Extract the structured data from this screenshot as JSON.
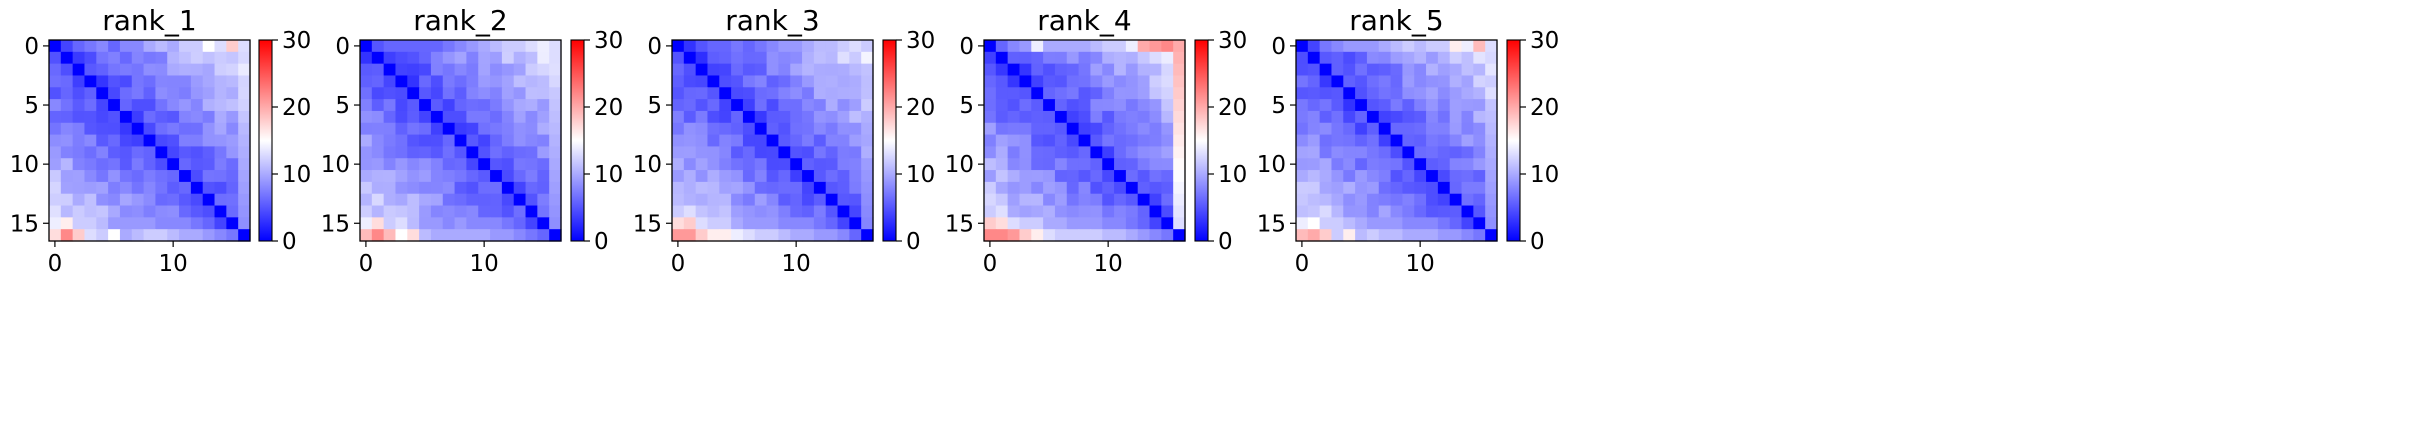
{
  "colormap": {
    "low": "#0000ff",
    "mid": "#ffffff",
    "high": "#ff0000"
  },
  "chart_data": [
    {
      "type": "heatmap",
      "title": "rank_1",
      "rows": 17,
      "cols": 17,
      "xticks": [
        0,
        10
      ],
      "yticks": [
        0,
        5,
        10,
        15
      ],
      "colorbar": {
        "min": 0,
        "max": 30,
        "ticks": [
          0,
          10,
          20,
          30
        ]
      },
      "base": 3.5,
      "slope": 0.6,
      "grad": 0.35,
      "noise": 1.5,
      "first_row": [
        0,
        4,
        6,
        7,
        8,
        6,
        8,
        8,
        10,
        11,
        10,
        12,
        12,
        15,
        13,
        18,
        13
      ],
      "last_row": [
        17,
        22,
        18,
        13,
        12,
        15,
        10,
        11,
        12,
        12,
        11,
        10,
        10,
        9,
        8,
        7,
        0
      ],
      "penult_row": [
        14,
        16,
        12,
        12,
        11,
        9,
        9,
        9,
        9,
        8,
        8,
        8,
        7,
        6,
        4,
        0,
        3
      ]
    },
    {
      "type": "heatmap",
      "title": "rank_2",
      "rows": 17,
      "cols": 17,
      "xticks": [
        0,
        10
      ],
      "yticks": [
        0,
        5,
        10,
        15
      ],
      "colorbar": {
        "min": 0,
        "max": 30,
        "ticks": [
          0,
          10,
          20,
          30
        ]
      },
      "base": 3.5,
      "slope": 0.6,
      "grad": 0.35,
      "noise": 1.5,
      "first_row": [
        0,
        5,
        6,
        6,
        6,
        6,
        6,
        7,
        8,
        9,
        10,
        11,
        12,
        12,
        13,
        14,
        13
      ],
      "last_row": [
        19,
        22,
        19,
        15,
        17,
        11,
        10,
        10,
        10,
        10,
        10,
        9,
        9,
        8,
        7,
        6,
        0
      ],
      "penult_row": [
        14,
        17,
        12,
        13,
        11,
        9,
        9,
        8,
        9,
        8,
        8,
        8,
        7,
        6,
        4,
        0,
        3
      ]
    },
    {
      "type": "heatmap",
      "title": "rank_3",
      "rows": 17,
      "cols": 17,
      "xticks": [
        0,
        10
      ],
      "yticks": [
        0,
        5,
        10,
        15
      ],
      "colorbar": {
        "min": 0,
        "max": 30,
        "ticks": [
          0,
          10,
          20,
          30
        ]
      },
      "base": 3.5,
      "slope": 0.6,
      "grad": 0.35,
      "noise": 1.5,
      "first_row": [
        0,
        3,
        5,
        6,
        6,
        7,
        6,
        7,
        8,
        9,
        9,
        10,
        11,
        11,
        12,
        13,
        12
      ],
      "last_row": [
        21,
        21,
        18,
        16,
        16,
        14,
        13,
        12,
        12,
        11,
        10,
        10,
        9,
        9,
        8,
        6,
        0
      ],
      "penult_row": [
        17,
        18,
        13,
        12,
        12,
        10,
        9,
        9,
        9,
        8,
        8,
        8,
        7,
        6,
        4,
        0,
        4
      ]
    },
    {
      "type": "heatmap",
      "title": "rank_4",
      "rows": 17,
      "cols": 17,
      "xticks": [
        0,
        10
      ],
      "yticks": [
        0,
        5,
        10,
        15
      ],
      "colorbar": {
        "min": 0,
        "max": 30,
        "ticks": [
          0,
          10,
          20,
          30
        ]
      },
      "base": 3.5,
      "slope": 0.6,
      "grad": 0.35,
      "noise": 1.5,
      "first_row": [
        0,
        6,
        8,
        9,
        14,
        10,
        10,
        10,
        10,
        11,
        12,
        12,
        14,
        20,
        21,
        22,
        20
      ],
      "last_row": [
        22,
        22,
        21,
        18,
        16,
        13,
        12,
        12,
        12,
        12,
        11,
        11,
        10,
        9,
        8,
        7,
        0
      ],
      "penult_row": [
        18,
        17,
        13,
        12,
        12,
        10,
        10,
        9,
        9,
        9,
        8,
        8,
        7,
        6,
        4,
        0,
        2
      ]
    },
    {
      "type": "heatmap",
      "title": "rank_5",
      "rows": 17,
      "cols": 17,
      "xticks": [
        0,
        10
      ],
      "yticks": [
        0,
        5,
        10,
        15
      ],
      "colorbar": {
        "min": 0,
        "max": 30,
        "ticks": [
          0,
          10,
          20,
          30
        ]
      },
      "base": 3.5,
      "slope": 0.6,
      "grad": 0.35,
      "noise": 1.5,
      "first_row": [
        0,
        4,
        7,
        8,
        9,
        9,
        9,
        10,
        11,
        12,
        11,
        12,
        12,
        16,
        14,
        19,
        13
      ],
      "last_row": [
        19,
        20,
        18,
        12,
        16,
        11,
        12,
        11,
        11,
        10,
        10,
        10,
        9,
        9,
        8,
        7,
        0
      ],
      "penult_row": [
        14,
        15,
        12,
        12,
        11,
        10,
        9,
        9,
        9,
        8,
        8,
        8,
        7,
        6,
        4,
        0,
        3
      ]
    }
  ]
}
